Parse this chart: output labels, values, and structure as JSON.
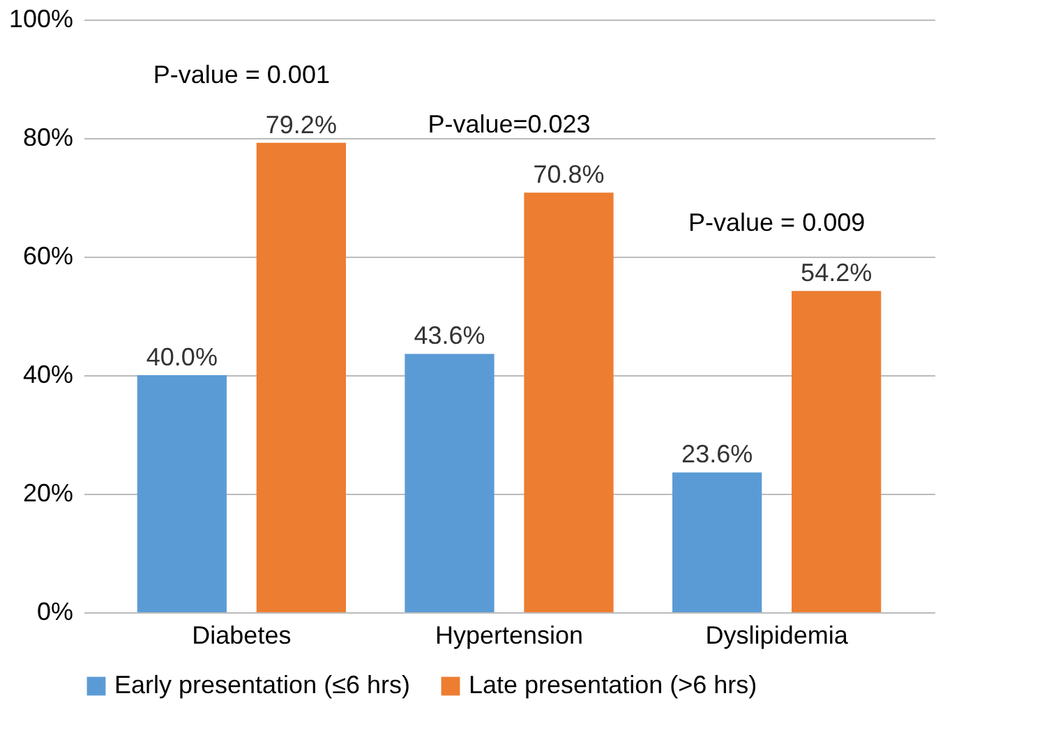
{
  "chart_data": {
    "type": "bar",
    "categories": [
      "Diabetes",
      "Hypertension",
      "Dyslipidemia"
    ],
    "series": [
      {
        "name": "Early presentation (≤6 hrs)",
        "color": "#5b9bd5",
        "values": [
          40.0,
          43.6,
          23.6
        ],
        "value_labels": [
          "40.0%",
          "43.6%",
          "23.6%"
        ]
      },
      {
        "name": "Late presentation (>6 hrs)",
        "color": "#ed7d31",
        "values": [
          79.2,
          70.8,
          54.2
        ],
        "value_labels": [
          "79.2%",
          "70.8%",
          "54.2%"
        ]
      }
    ],
    "ylim": [
      0,
      100
    ],
    "yticks": [
      {
        "value": 0,
        "label": "0%"
      },
      {
        "value": 20,
        "label": "20%"
      },
      {
        "value": 40,
        "label": "40%"
      },
      {
        "value": 60,
        "label": "60%"
      },
      {
        "value": 80,
        "label": "80%"
      },
      {
        "value": 100,
        "label": "100%"
      }
    ],
    "grid": "y",
    "legend": "bottom",
    "annotations": [
      "P-value = 0.001",
      "P-value=0.023",
      "P-value = 0.009"
    ]
  }
}
